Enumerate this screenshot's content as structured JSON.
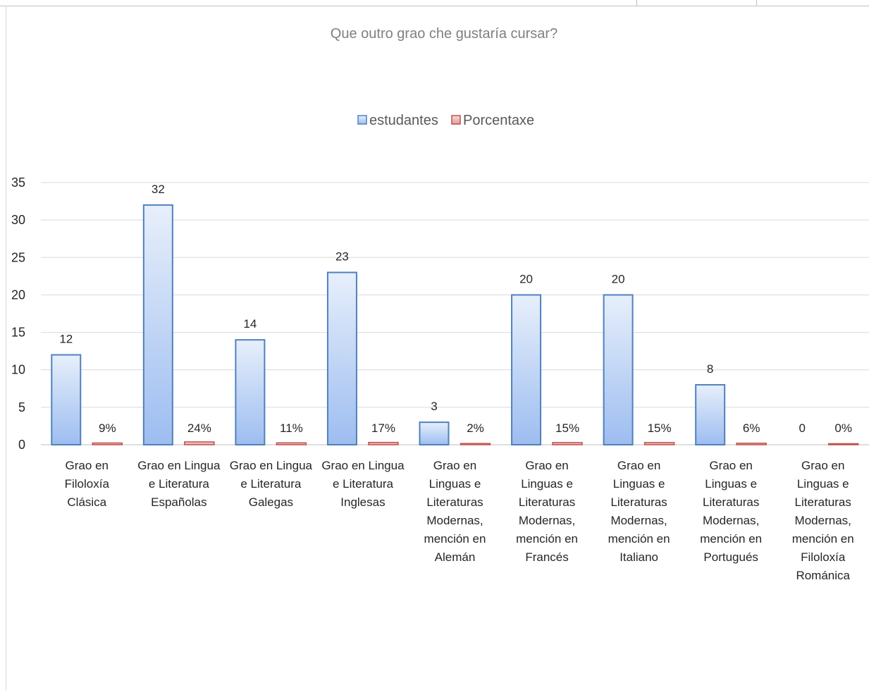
{
  "chart_data": {
    "type": "bar",
    "title": "Que outro grao che gustaría cursar?",
    "categories": [
      [
        "Grao en",
        "Filoloxía",
        "Clásica"
      ],
      [
        "Grao en Lingua",
        "e Literatura",
        "Españolas"
      ],
      [
        "Grao en Lingua",
        "e Literatura",
        "Galegas"
      ],
      [
        "Grao en Lingua",
        "e Literatura",
        "Inglesas"
      ],
      [
        "Grao en",
        "Linguas e",
        "Literaturas",
        "Modernas,",
        "mención en",
        "Alemán"
      ],
      [
        "Grao en",
        "Linguas e",
        "Literaturas",
        "Modernas,",
        "mención en",
        "Francés"
      ],
      [
        "Grao en",
        "Linguas e",
        "Literaturas",
        "Modernas,",
        "mención en",
        "Italiano"
      ],
      [
        "Grao en",
        "Linguas e",
        "Literaturas",
        "Modernas,",
        "mención en",
        "Portugués"
      ],
      [
        "Grao en",
        "Linguas e",
        "Literaturas",
        "Modernas,",
        "mención en",
        "Filoloxía",
        "Románica"
      ]
    ],
    "series": [
      {
        "name": "estudantes",
        "values": [
          12,
          32,
          14,
          23,
          3,
          20,
          20,
          8,
          0
        ],
        "labels": [
          "12",
          "32",
          "14",
          "23",
          "3",
          "20",
          "20",
          "8",
          "0"
        ],
        "color": "#4f81bd"
      },
      {
        "name": "Porcentaxe",
        "values": [
          0.09,
          0.24,
          0.11,
          0.17,
          0.02,
          0.15,
          0.15,
          0.06,
          0.0
        ],
        "labels": [
          "9%",
          "24%",
          "11%",
          "17%",
          "2%",
          "15%",
          "15%",
          "6%",
          "0%"
        ],
        "color": "#c0504d"
      }
    ],
    "ylim": [
      0,
      35
    ],
    "yticks": [
      "0",
      "5",
      "10",
      "15",
      "20",
      "25",
      "30",
      "35"
    ],
    "grid": true,
    "legend_position": "top"
  }
}
